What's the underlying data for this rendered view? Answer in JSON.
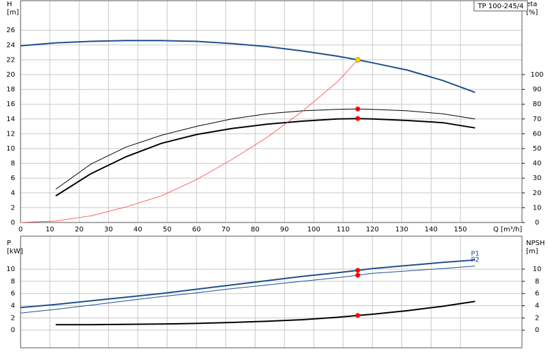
{
  "chart_data": [
    {
      "type": "line",
      "title": "TP 100-245/4",
      "y_label": "H",
      "y_unit": "[m]",
      "y2_label": "eta",
      "y2_unit": "[%]",
      "x_label": "Q [m³/h]",
      "x": [
        0,
        12,
        24,
        36,
        48,
        60,
        72,
        84,
        96,
        108,
        115,
        120,
        132,
        144,
        155
      ],
      "xlim": [
        0,
        171
      ],
      "xticks": [
        0,
        10,
        20,
        30,
        40,
        50,
        60,
        70,
        80,
        90,
        100,
        110,
        120,
        130,
        140,
        150
      ],
      "ylim": [
        0,
        30
      ],
      "yticks": [
        0,
        2,
        4,
        6,
        8,
        10,
        12,
        14,
        16,
        18,
        20,
        22,
        24,
        26
      ],
      "y2lim": [
        0,
        150
      ],
      "y2ticks": [
        0,
        10,
        20,
        30,
        40,
        50,
        60,
        70,
        80,
        90,
        100
      ],
      "grid": true,
      "series": [
        {
          "color": "#1f4e8c",
          "line_width": 2,
          "values": [
            23.9,
            24.3,
            24.5,
            24.6,
            24.6,
            24.5,
            24.2,
            23.8,
            23.2,
            22.5,
            22.0,
            21.6,
            20.6,
            19.2,
            17.6
          ]
        },
        {
          "color": "#000000",
          "line_width": 1,
          "axis": "y2",
          "values": [
            null,
            22.5,
            39.5,
            51,
            59,
            65,
            70,
            73.5,
            75.5,
            76.5,
            76.8,
            76.5,
            75.5,
            73.5,
            70
          ]
        },
        {
          "color": "#000000",
          "line_width": 2,
          "axis": "y2",
          "values": [
            null,
            18,
            33,
            44.5,
            53.5,
            59.5,
            63.5,
            66.5,
            68.5,
            70,
            70.3,
            70,
            69,
            67.5,
            64
          ]
        },
        {
          "color": "#ff4040",
          "line_width": 0.8,
          "values": [
            0,
            0.2,
            0.9,
            2.1,
            3.6,
            5.8,
            8.5,
            11.5,
            15,
            19,
            22.0,
            null,
            null,
            null,
            null
          ]
        }
      ],
      "markers": [
        {
          "x": 115,
          "y": 22.0,
          "color": "#ffd700"
        },
        {
          "x": 115,
          "y": 76.8,
          "axis": "y2",
          "color": "#ff0000"
        },
        {
          "x": 115,
          "y": 70.3,
          "axis": "y2",
          "color": "#ff0000"
        }
      ]
    },
    {
      "type": "line",
      "y_label": "P",
      "y_unit": "[kW]",
      "y2_label": "NPSH",
      "y2_unit": "[m]",
      "x": [
        0,
        12,
        24,
        36,
        48,
        60,
        72,
        84,
        96,
        108,
        115,
        120,
        132,
        144,
        155
      ],
      "xlim": [
        0,
        171
      ],
      "xticks": [
        0,
        10,
        20,
        30,
        40,
        50,
        60,
        70,
        80,
        90,
        100,
        110,
        120,
        130,
        140,
        150
      ],
      "ylim": [
        -2.9,
        15.4
      ],
      "yticks": [
        0,
        2,
        4,
        6,
        8,
        10
      ],
      "y2lim": [
        -2.9,
        15.4
      ],
      "y2ticks": [
        0,
        2,
        4,
        6,
        8,
        10
      ],
      "grid": true,
      "series": [
        {
          "name": "P1",
          "color": "#1f4e8c",
          "line_width": 2,
          "values": [
            3.7,
            4.2,
            4.8,
            5.4,
            6.0,
            6.7,
            7.4,
            8.1,
            8.8,
            9.4,
            9.8,
            10.1,
            10.6,
            11.1,
            11.5
          ]
        },
        {
          "name": "P2",
          "color": "#1f4e8c",
          "line_width": 1,
          "values": [
            2.8,
            3.4,
            4.1,
            4.8,
            5.5,
            6.1,
            6.8,
            7.4,
            8.0,
            8.6,
            9.0,
            9.3,
            9.7,
            10.1,
            10.5
          ]
        },
        {
          "color": "#000000",
          "line_width": 2,
          "axis": "y2",
          "values": [
            null,
            0.9,
            0.9,
            0.95,
            1.0,
            1.1,
            1.25,
            1.45,
            1.7,
            2.1,
            2.4,
            2.6,
            3.2,
            3.9,
            4.7
          ]
        }
      ],
      "markers": [
        {
          "x": 115,
          "y": 9.8,
          "color": "#ff0000"
        },
        {
          "x": 115,
          "y": 9.0,
          "color": "#ff0000"
        },
        {
          "x": 115,
          "y": 2.4,
          "axis": "y2",
          "color": "#ff0000"
        }
      ]
    }
  ]
}
